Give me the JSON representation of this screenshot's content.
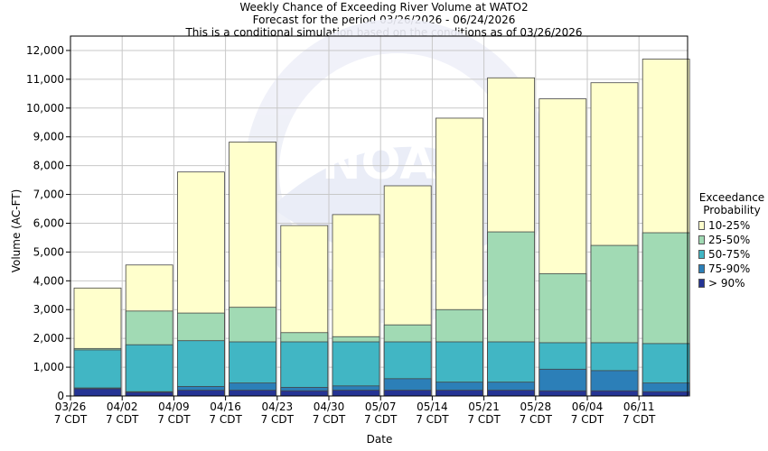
{
  "chart": {
    "title_line1": "Weekly Chance of Exceeding River Volume at WATO2",
    "title_line2": "Forecast for the period 03/26/2026 - 06/24/2026",
    "title_line3": "This is a conditional simulation based on the conditions as of 03/26/2026",
    "xlabel": "Date",
    "ylabel": "Volume (AC-FT)",
    "watermark_text": "NOAA"
  },
  "legend": {
    "title_line1": "Exceedance",
    "title_line2": "Probability",
    "items": [
      {
        "label": "10-25%",
        "color": "#ffffcc"
      },
      {
        "label": "25-50%",
        "color": "#a1dab4"
      },
      {
        "label": "50-75%",
        "color": "#41b6c4"
      },
      {
        "label": "75-90%",
        "color": "#2c7fb8"
      },
      {
        "label": "> 90%",
        "color": "#253494"
      }
    ]
  },
  "chart_data": {
    "type": "bar",
    "stacked": true,
    "title": "Weekly Chance of Exceeding River Volume at WATO2",
    "xlabel": "Date",
    "ylabel": "Volume (AC-FT)",
    "ylim": [
      0,
      12500
    ],
    "yticks": [
      0,
      1000,
      2000,
      3000,
      4000,
      5000,
      6000,
      7000,
      8000,
      9000,
      10000,
      11000,
      12000
    ],
    "ytick_labels": [
      "0",
      "1,000",
      "2,000",
      "3,000",
      "4,000",
      "5,000",
      "6,000",
      "7,000",
      "8,000",
      "9,000",
      "10,000",
      "11,000",
      "12,000"
    ],
    "xtick_labels": [
      [
        "03/26",
        "7 CDT"
      ],
      [
        "04/02",
        "7 CDT"
      ],
      [
        "04/09",
        "7 CDT"
      ],
      [
        "04/16",
        "7 CDT"
      ],
      [
        "04/23",
        "7 CDT"
      ],
      [
        "04/30",
        "7 CDT"
      ],
      [
        "05/07",
        "7 CDT"
      ],
      [
        "05/14",
        "7 CDT"
      ],
      [
        "05/21",
        "7 CDT"
      ],
      [
        "05/28",
        "7 CDT"
      ],
      [
        "06/04",
        "7 CDT"
      ],
      [
        "06/11",
        "7 CDT"
      ]
    ],
    "grid": true,
    "legend_position": "right",
    "levels": [
      {
        "name": "> 90%",
        "color": "#253494",
        "values": [
          250,
          130,
          200,
          200,
          180,
          200,
          200,
          200,
          200,
          180,
          180,
          150
        ]
      },
      {
        "name": "75-90%",
        "color": "#2c7fb8",
        "values": [
          280,
          150,
          330,
          450,
          300,
          350,
          600,
          480,
          480,
          930,
          880,
          450
        ]
      },
      {
        "name": "50-75%",
        "color": "#41b6c4",
        "values": [
          1600,
          1780,
          1920,
          1880,
          1880,
          1880,
          1880,
          1880,
          1880,
          1850,
          1850,
          1820
        ]
      },
      {
        "name": "25-50%",
        "color": "#a1dab4",
        "values": [
          1650,
          2950,
          2880,
          3080,
          2200,
          2060,
          2470,
          3000,
          5700,
          4250,
          5230,
          5670
        ]
      },
      {
        "name": "10-25%",
        "color": "#ffffcc",
        "values": [
          3750,
          4550,
          7780,
          8820,
          5920,
          6300,
          7300,
          9650,
          11050,
          10320,
          10880,
          11700
        ]
      }
    ]
  }
}
